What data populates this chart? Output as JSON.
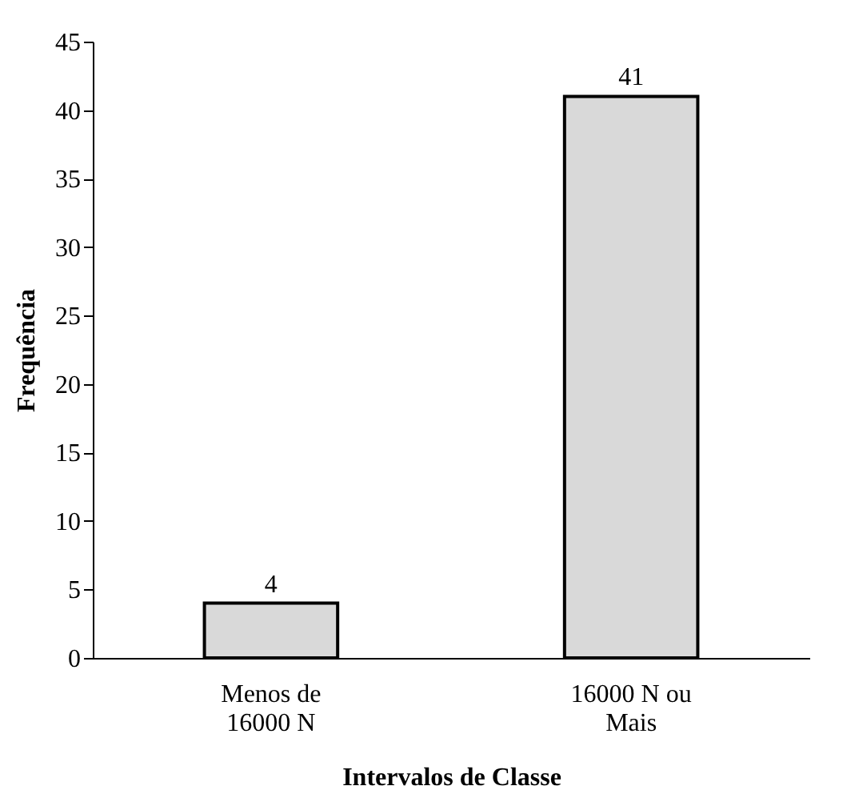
{
  "chart_data": {
    "type": "bar",
    "xlabel": "Intervalos de Classe",
    "ylabel": "Frequência",
    "categories": [
      "Menos de 16000 N",
      "16000 N ou Mais"
    ],
    "values": [
      4,
      41
    ],
    "color": "#d9d9d9",
    "ylim": [
      0,
      45
    ],
    "yticks": [
      0,
      5,
      10,
      15,
      20,
      25,
      30,
      35,
      40,
      45
    ],
    "grid": false,
    "data_labels": true
  }
}
